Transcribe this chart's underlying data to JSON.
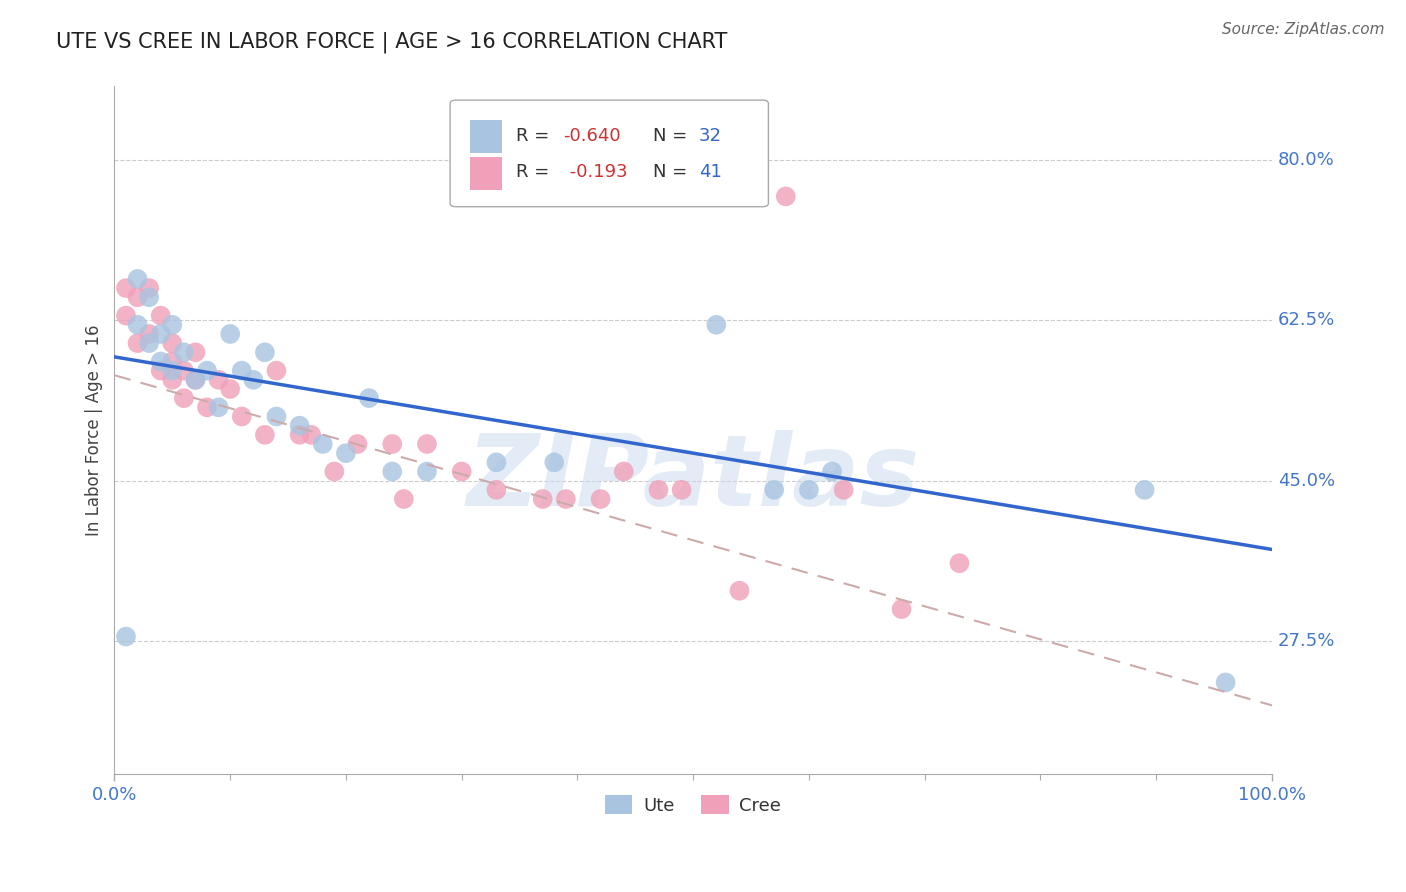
{
  "title": "UTE VS CREE IN LABOR FORCE | AGE > 16 CORRELATION CHART",
  "source": "Source: ZipAtlas.com",
  "ylabel": "In Labor Force | Age > 16",
  "xlim": [
    0.0,
    1.0
  ],
  "ylim": [
    0.13,
    0.88
  ],
  "ytick_labels": [
    "27.5%",
    "45.0%",
    "62.5%",
    "80.0%"
  ],
  "ytick_values": [
    0.275,
    0.45,
    0.625,
    0.8
  ],
  "grid_color": "#cccccc",
  "background_color": "#ffffff",
  "watermark": "ZIPatlas",
  "watermark_color": "#c8d8ee",
  "ute_color": "#a8c4e0",
  "cree_color": "#f0a0b8",
  "ute_line_color": "#3366cc",
  "cree_line_color": "#ccaaaa",
  "ute_x": [
    0.01,
    0.02,
    0.02,
    0.03,
    0.03,
    0.04,
    0.04,
    0.05,
    0.05,
    0.06,
    0.07,
    0.08,
    0.09,
    0.1,
    0.11,
    0.12,
    0.13,
    0.14,
    0.16,
    0.18,
    0.2,
    0.22,
    0.24,
    0.27,
    0.33,
    0.38,
    0.52,
    0.57,
    0.6,
    0.62,
    0.89,
    0.96
  ],
  "ute_y": [
    0.28,
    0.67,
    0.62,
    0.6,
    0.65,
    0.58,
    0.61,
    0.62,
    0.57,
    0.59,
    0.56,
    0.57,
    0.53,
    0.61,
    0.57,
    0.56,
    0.59,
    0.52,
    0.51,
    0.49,
    0.48,
    0.54,
    0.46,
    0.46,
    0.47,
    0.47,
    0.62,
    0.44,
    0.44,
    0.46,
    0.44,
    0.23
  ],
  "cree_x": [
    0.01,
    0.01,
    0.02,
    0.02,
    0.03,
    0.03,
    0.04,
    0.04,
    0.05,
    0.05,
    0.05,
    0.06,
    0.06,
    0.07,
    0.07,
    0.08,
    0.09,
    0.1,
    0.11,
    0.13,
    0.14,
    0.16,
    0.17,
    0.19,
    0.21,
    0.24,
    0.25,
    0.27,
    0.3,
    0.33,
    0.37,
    0.39,
    0.42,
    0.44,
    0.47,
    0.49,
    0.54,
    0.58,
    0.63,
    0.68,
    0.73
  ],
  "cree_y": [
    0.66,
    0.63,
    0.65,
    0.6,
    0.66,
    0.61,
    0.63,
    0.57,
    0.6,
    0.56,
    0.58,
    0.57,
    0.54,
    0.59,
    0.56,
    0.53,
    0.56,
    0.55,
    0.52,
    0.5,
    0.57,
    0.5,
    0.5,
    0.46,
    0.49,
    0.49,
    0.43,
    0.49,
    0.46,
    0.44,
    0.43,
    0.43,
    0.43,
    0.46,
    0.44,
    0.44,
    0.33,
    0.76,
    0.44,
    0.31,
    0.36
  ],
  "ute_line_x0": 0.0,
  "ute_line_y0": 0.585,
  "ute_line_x1": 1.0,
  "ute_line_y1": 0.375,
  "cree_line_x0": 0.0,
  "cree_line_y0": 0.565,
  "cree_line_x1": 1.0,
  "cree_line_y1": 0.205
}
